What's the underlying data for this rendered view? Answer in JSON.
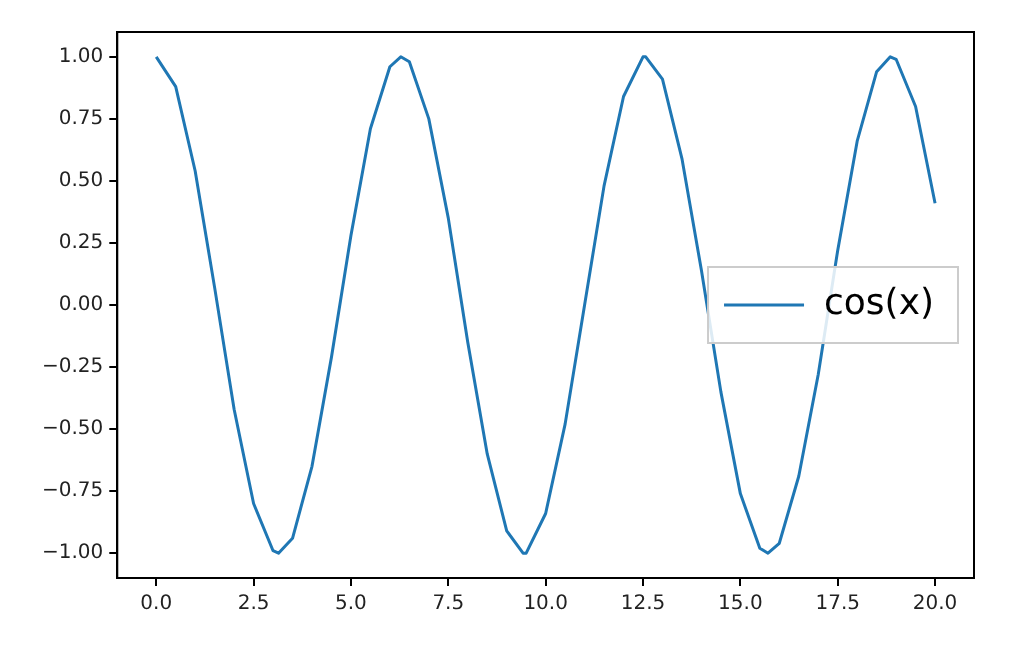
{
  "chart_data": {
    "type": "line",
    "legend": "right",
    "grid": false,
    "marker": "none",
    "line_style": "solid",
    "xlim": [
      -1,
      21
    ],
    "ylim": [
      -1.1,
      1.1
    ],
    "xticks": [
      {
        "value": 0,
        "label": "0.0"
      },
      {
        "value": 2.5,
        "label": "2.5"
      },
      {
        "value": 5,
        "label": "5.0"
      },
      {
        "value": 7.5,
        "label": "7.5"
      },
      {
        "value": 10,
        "label": "10.0"
      },
      {
        "value": 12.5,
        "label": "12.5"
      },
      {
        "value": 15,
        "label": "15.0"
      },
      {
        "value": 17.5,
        "label": "17.5"
      },
      {
        "value": 20,
        "label": "20.0"
      }
    ],
    "yticks": [
      {
        "value": -1,
        "label": "−1.00"
      },
      {
        "value": -0.75,
        "label": "−0.75"
      },
      {
        "value": -0.5,
        "label": "−0.50"
      },
      {
        "value": -0.25,
        "label": "−0.25"
      },
      {
        "value": 0,
        "label": "0.00"
      },
      {
        "value": 0.25,
        "label": "0.25"
      },
      {
        "value": 0.5,
        "label": "0.50"
      },
      {
        "value": 0.75,
        "label": "0.75"
      },
      {
        "value": 1,
        "label": "1.00"
      }
    ],
    "x": [
      0,
      0.5,
      1,
      1.5,
      2,
      2.5,
      3,
      3.14,
      3.5,
      4,
      4.5,
      5,
      5.5,
      6,
      6.28,
      6.5,
      7,
      7.5,
      8,
      8.5,
      9,
      9.42,
      9.5,
      10,
      10.5,
      11,
      11.5,
      12,
      12.5,
      12.57,
      13,
      13.5,
      14,
      14.5,
      15,
      15.5,
      15.71,
      16,
      16.5,
      17,
      17.5,
      18,
      18.5,
      18.85,
      19,
      19.5,
      20
    ],
    "series": [
      {
        "name": "cos(x)",
        "color": "#1f77b4",
        "values": [
          1,
          0.88,
          0.54,
          0.07,
          -0.42,
          -0.8,
          -0.99,
          -1,
          -0.94,
          -0.65,
          -0.21,
          0.28,
          0.71,
          0.96,
          1,
          0.98,
          0.75,
          0.35,
          -0.15,
          -0.6,
          -0.91,
          -1,
          -1,
          -0.84,
          -0.48,
          0,
          0.48,
          0.84,
          1,
          1,
          0.91,
          0.59,
          0.14,
          -0.35,
          -0.76,
          -0.98,
          -1,
          -0.96,
          -0.69,
          -0.28,
          0.22,
          0.66,
          0.94,
          1,
          0.99,
          0.8,
          0.41
        ]
      }
    ]
  }
}
